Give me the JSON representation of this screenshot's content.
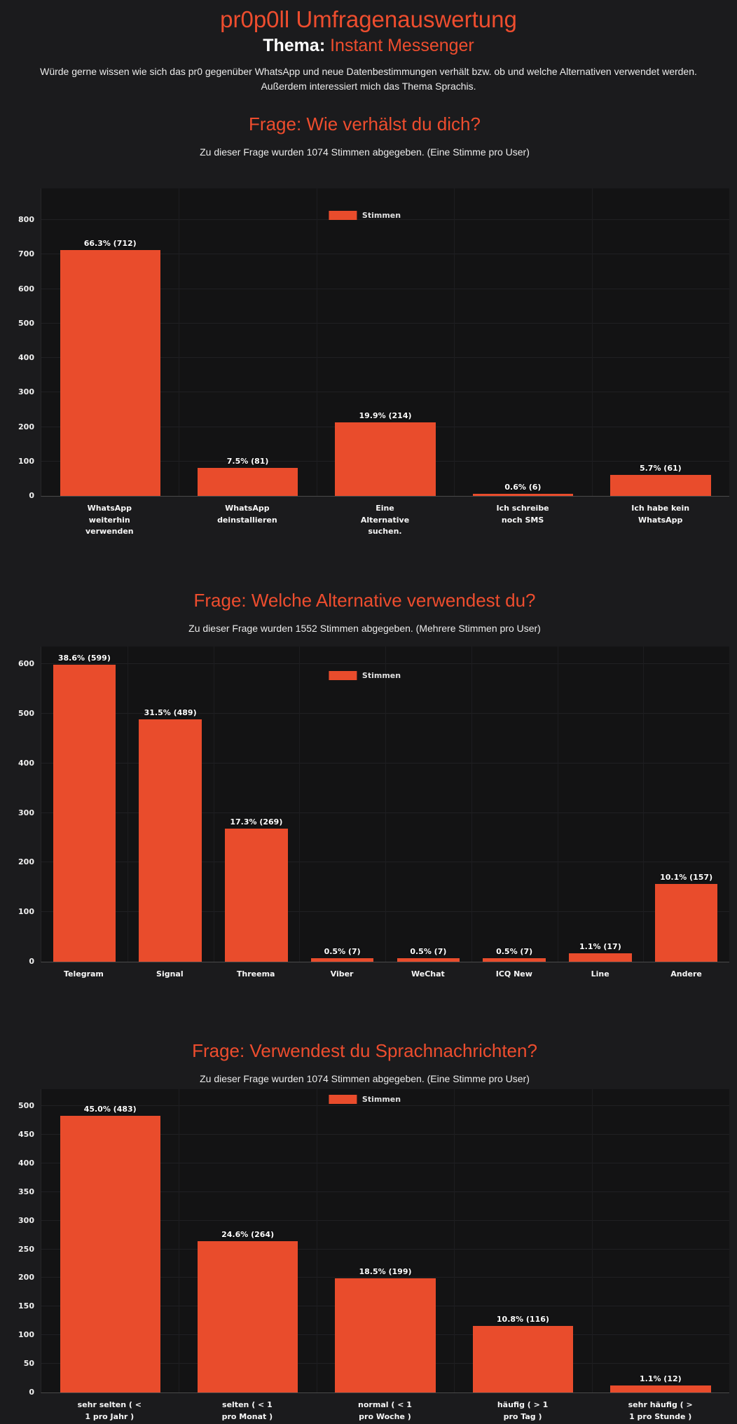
{
  "page": {
    "title": "pr0p0ll Umfragenauswertung",
    "thema_label": "Thema:",
    "thema_value": "Instant Messenger",
    "description": "Würde gerne wissen wie sich das pr0 gegenüber WhatsApp und neue Datenbestimmungen verhält bzw. ob und welche Alternativen verwendet werden. Außerdem interessiert mich das Thema Sprachis."
  },
  "colors": {
    "accent": "#ee4d2e",
    "bar": "#e94c2c",
    "page_background": "#1b1b1d",
    "plot_background": "#131314",
    "text": "#ffffff"
  },
  "chart_data": [
    {
      "type": "bar",
      "title": "Frage: Wie verhälst du dich?",
      "subtitle": "Zu dieser Frage wurden 1074 Stimmen abgegeben. (Eine Stimme pro User)",
      "legend": "Stimmen",
      "legend_position": "top-center",
      "grid": true,
      "xlabel": "",
      "ylabel": "",
      "ylim": [
        0,
        800
      ],
      "ytick_step": 100,
      "categories": [
        "WhatsApp\nweiterhin\nverwenden",
        "WhatsApp\ndeinstallieren",
        "Eine\nAlternative\nsuchen.",
        "Ich schreibe\nnoch SMS",
        "Ich habe kein\nWhatsApp"
      ],
      "values": [
        712,
        81,
        214,
        6,
        61
      ],
      "value_labels": [
        "66.3% (712)",
        "7.5% (81)",
        "19.9% (214)",
        "0.6% (6)",
        "5.7% (61)"
      ]
    },
    {
      "type": "bar",
      "title": "Frage: Welche Alternative verwendest du?",
      "subtitle": "Zu dieser Frage wurden 1552 Stimmen abgegeben. (Mehrere Stimmen pro User)",
      "legend": "Stimmen",
      "legend_position": "top-center",
      "grid": true,
      "xlabel": "",
      "ylabel": "",
      "ylim": [
        0,
        600
      ],
      "ytick_step": 100,
      "categories": [
        "Telegram",
        "Signal",
        "Threema",
        "Viber",
        "WeChat",
        "ICQ New",
        "Line",
        "Andere"
      ],
      "values": [
        599,
        489,
        269,
        7,
        7,
        7,
        17,
        157
      ],
      "value_labels": [
        "38.6% (599)",
        "31.5% (489)",
        "17.3% (269)",
        "0.5% (7)",
        "0.5% (7)",
        "0.5% (7)",
        "1.1% (17)",
        "10.1% (157)"
      ]
    },
    {
      "type": "bar",
      "title": "Frage: Verwendest du Sprachnachrichten?",
      "subtitle": "Zu dieser Frage wurden 1074 Stimmen abgegeben. (Eine Stimme pro User)",
      "legend": "Stimmen",
      "legend_position": "top-center",
      "grid": true,
      "xlabel": "",
      "ylabel": "",
      "ylim": [
        0,
        500
      ],
      "ytick_step": 50,
      "categories": [
        "sehr selten ( <\n1 pro Jahr )",
        "selten ( < 1\npro Monat )",
        "normal ( < 1\npro Woche )",
        "häufig ( > 1\npro Tag )",
        "sehr häufig ( >\n1 pro Stunde )"
      ],
      "values": [
        483,
        264,
        199,
        116,
        12
      ],
      "value_labels": [
        "45.0% (483)",
        "24.6% (264)",
        "18.5% (199)",
        "10.8% (116)",
        "1.1% (12)"
      ]
    }
  ]
}
